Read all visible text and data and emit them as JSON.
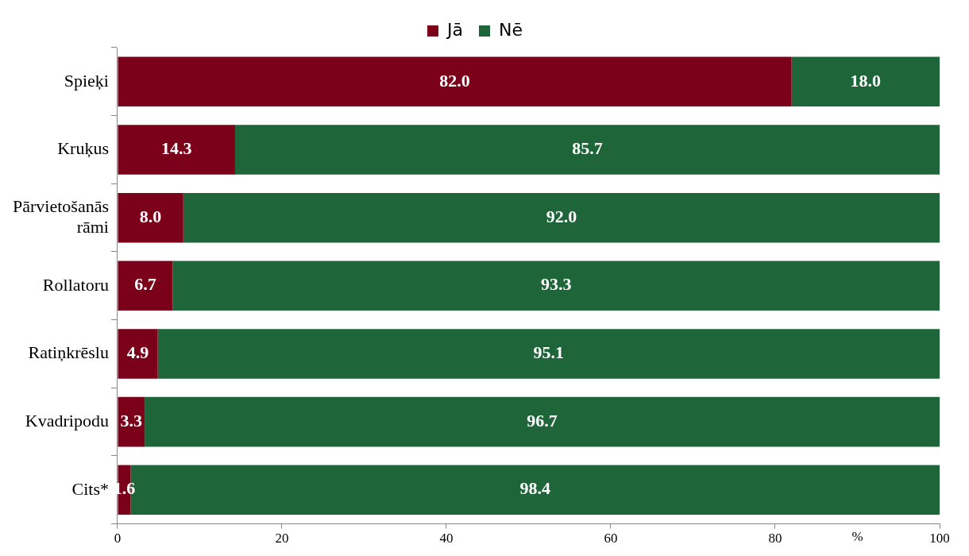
{
  "chart_data": {
    "type": "bar",
    "orientation": "horizontal",
    "stacked": true,
    "categories": [
      "Spieķi",
      "Kruķus",
      "Pārvietošanās rāmi",
      "Rollatoru",
      "Ratiņkrēslu",
      "Kvadripodu",
      "Cits*"
    ],
    "series": [
      {
        "name": "Jā",
        "color": "#7b0019",
        "values": [
          82.0,
          14.3,
          8.0,
          6.7,
          4.9,
          3.3,
          1.6
        ],
        "value_labels": [
          "82.0",
          "14.3",
          "8.0",
          "6.7",
          "4.9",
          "3.3",
          "1.6"
        ]
      },
      {
        "name": "Nē",
        "color": "#1e6639",
        "values": [
          18.0,
          85.7,
          92.0,
          93.3,
          95.1,
          96.7,
          98.4
        ],
        "value_labels": [
          "18.0",
          "85.7",
          "92.0",
          "93.3",
          "95.1",
          "96.7",
          "98.4"
        ]
      }
    ],
    "xlim": [
      0,
      100
    ],
    "xticks": [
      0,
      20,
      40,
      60,
      80,
      100
    ],
    "xlabel": "%",
    "grid": false,
    "legend": "top"
  }
}
